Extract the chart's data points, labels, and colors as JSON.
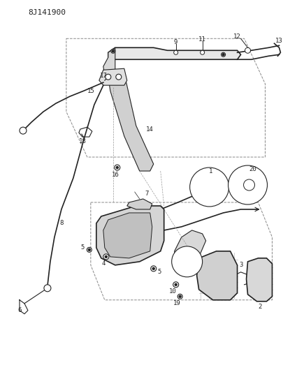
{
  "title": "8J141900",
  "bg_color": "#ffffff",
  "fg_color": "#222222",
  "fig_width": 4.05,
  "fig_height": 5.33,
  "dpi": 100
}
